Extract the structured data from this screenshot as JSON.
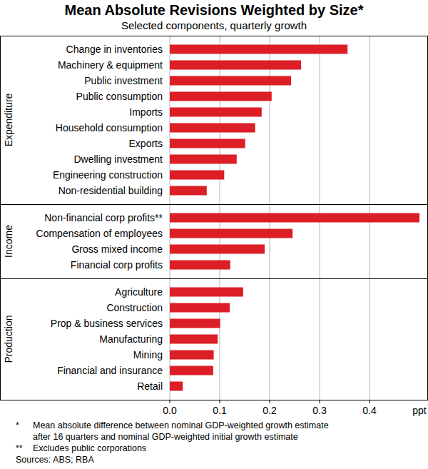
{
  "title": "Mean Absolute Revisions Weighted by Size*",
  "subtitle": "Selected components, quarterly growth",
  "chart_data": [
    {
      "type": "bar",
      "orientation": "horizontal",
      "ylabel": "Expenditure",
      "categories": [
        "Change in inventories",
        "Machinery & equipment",
        "Public investment",
        "Public consumption",
        "Imports",
        "Household consumption",
        "Exports",
        "Dwelling investment",
        "Engineering construction",
        "Non-residential building"
      ],
      "values": [
        0.356,
        0.263,
        0.243,
        0.204,
        0.184,
        0.171,
        0.151,
        0.134,
        0.109,
        0.074
      ],
      "color": "#dc1f26",
      "xlim": [
        0,
        0.5
      ],
      "xticks": [
        {
          "value": 0,
          "label": "0.0"
        },
        0.1,
        0.2,
        0.3,
        0.4
      ],
      "grid": true,
      "tick_labels": "y"
    },
    {
      "type": "bar",
      "orientation": "horizontal",
      "ylabel": "Income",
      "categories": [
        "Non-financial corp profits**",
        "Compensation of employees",
        "Gross mixed income",
        "Financial corp profits"
      ],
      "values": [
        0.5,
        0.246,
        0.19,
        0.121
      ],
      "color": "#dc1f26",
      "xlim": [
        0,
        0.5
      ],
      "xticks": [
        {
          "value": 0,
          "label": "0.0"
        },
        0.1,
        0.2,
        0.3,
        0.4
      ],
      "grid": true,
      "tick_labels": "y"
    },
    {
      "type": "bar",
      "orientation": "horizontal",
      "ylabel": "Production",
      "xlabel": "ppt",
      "categories": [
        "Agriculture",
        "Construction",
        "Prop & business services",
        "Manufacturing",
        "Mining",
        "Financial and insurance",
        "Retail"
      ],
      "values": [
        0.147,
        0.12,
        0.101,
        0.096,
        0.088,
        0.087,
        0.026
      ],
      "color": "#dc1f26",
      "xlim": [
        0,
        0.5
      ],
      "xticks": [
        {
          "value": 0,
          "label": "0.0"
        },
        0.1,
        0.2,
        0.3,
        0.4
      ],
      "grid": true
    }
  ],
  "notes": [
    {
      "marker": "*",
      "lines": [
        "Mean absolute difference between nominal GDP-weighted growth estimate",
        "after 16 quarters and nominal GDP-weighted initial growth estimate"
      ]
    },
    {
      "marker": "**",
      "lines": [
        "Excludes public corporations"
      ]
    }
  ],
  "sources": "Sources: ABS; RBA"
}
